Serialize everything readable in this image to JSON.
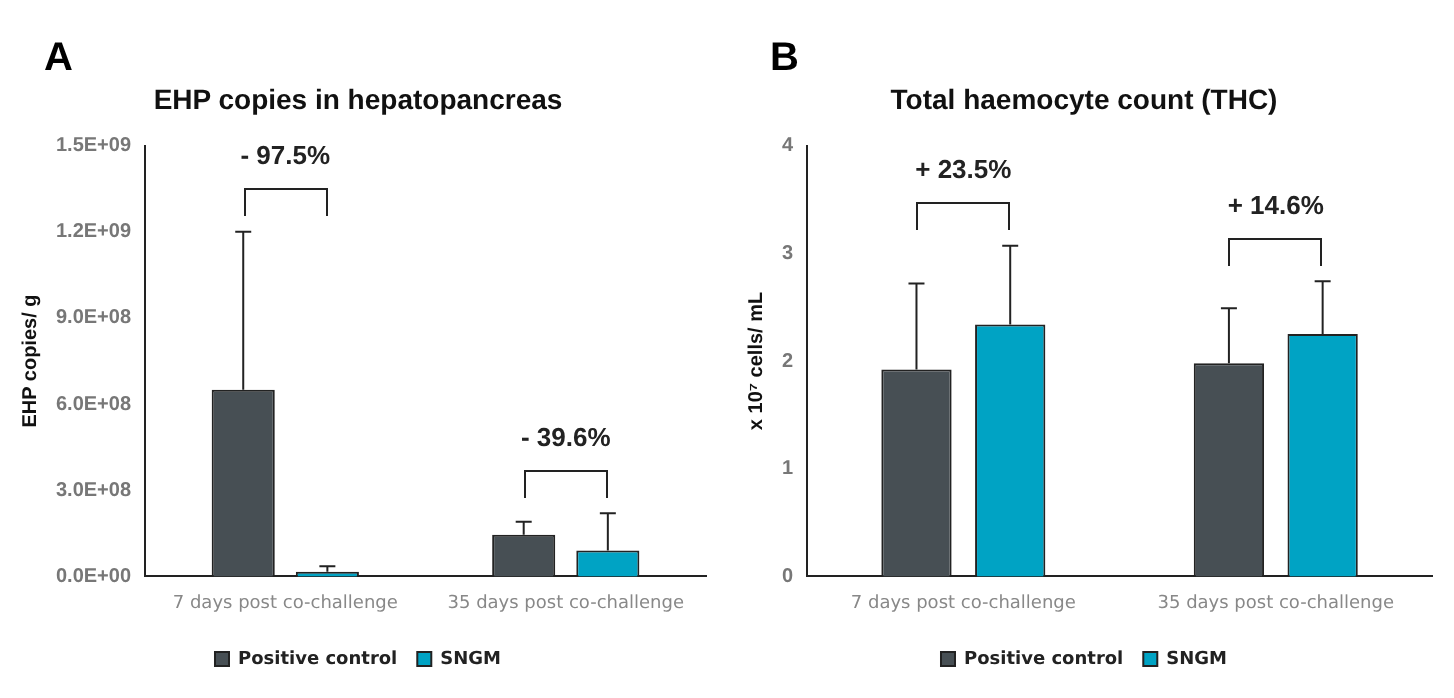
{
  "chart_data": [
    {
      "type": "bar",
      "title": "EHP copies in hepatopancreas",
      "ylabel": "EHP copies/ g",
      "categories": [
        "7 days post co-challenge",
        "35 days post co-challenge"
      ],
      "series": [
        {
          "name": "Positive control",
          "color": "#474f54",
          "values": [
            650000000,
            145000000
          ],
          "errors": [
            [
              650000000,
              1200000000
            ],
            [
              145000000,
              190000000
            ]
          ]
        },
        {
          "name": "SNGM",
          "color": "#00a3c4",
          "values": [
            16000000,
            90000000
          ],
          "errors": [
            [
              16000000,
              35000000
            ],
            [
              90000000,
              220000000
            ]
          ]
        }
      ],
      "ylim": [
        0,
        1500000000
      ],
      "yticks": [
        {
          "value": 0,
          "label": "0.0E+00"
        },
        {
          "value": 300000000,
          "label": "3.0E+08"
        },
        {
          "value": 600000000,
          "label": "6.0E+08"
        },
        {
          "value": 900000000,
          "label": "9.0E+08"
        },
        {
          "value": 1200000000,
          "label": "1.2E+09"
        },
        {
          "value": 1500000000,
          "label": "1.5E+09"
        }
      ],
      "grid": false,
      "legend": "bottom",
      "annotations": [
        "A",
        "- 97.5%",
        "- 39.6%"
      ]
    },
    {
      "type": "bar",
      "title": "Total haemocyte count (THC)",
      "ylabel": "x 10⁷ cells/ mL",
      "categories": [
        "7 days post co-challenge",
        "35 days post co-challenge"
      ],
      "series": [
        {
          "name": "Positive control",
          "color": "#474f54",
          "values": [
            1.92,
            1.98
          ],
          "errors": [
            [
              1.92,
              2.72
            ],
            [
              1.98,
              2.49
            ]
          ]
        },
        {
          "name": "SNGM",
          "color": "#00a3c4",
          "values": [
            2.34,
            2.25
          ],
          "errors": [
            [
              2.34,
              3.07
            ],
            [
              2.25,
              2.74
            ]
          ]
        }
      ],
      "ylim": [
        0,
        4
      ],
      "yticks": [
        0,
        1,
        2,
        3,
        4
      ],
      "grid": false,
      "legend": "bottom",
      "annotations": [
        "B",
        "+ 23.5%",
        "+ 14.6%"
      ]
    }
  ]
}
